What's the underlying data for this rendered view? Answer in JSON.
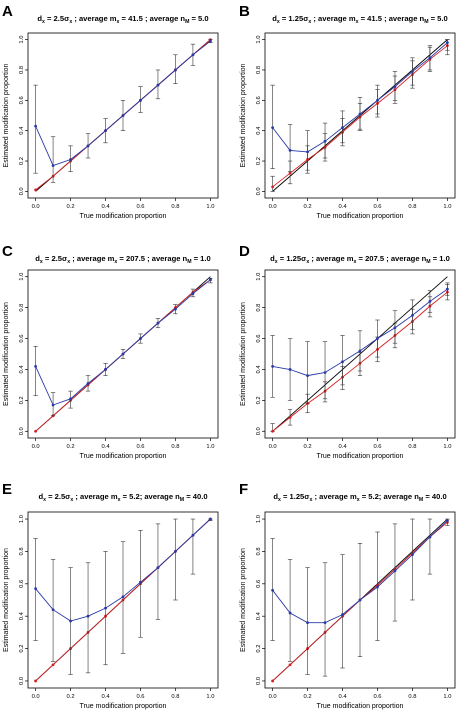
{
  "figure": {
    "colors": {
      "black": "#000000",
      "red": "#d62020",
      "blue": "#2a3aa8"
    }
  },
  "chart_data": [
    {
      "panel": "A",
      "type": "line",
      "title": "dₖ = 2.5σₖ ; average mₖ = 41.5 ; average nₘ = 5.0",
      "title_parts": [
        "d",
        "x",
        " = 2.5σ",
        "x",
        " ; average m",
        "x",
        " = 41.5 ; average n",
        "M",
        " = 5.0"
      ],
      "xlabel": "True modification proportion",
      "ylabel": "Estimated modification proportion",
      "xlim": [
        0,
        1
      ],
      "ylim": [
        0,
        1
      ],
      "xticks": [
        "0.0",
        "0.2",
        "0.4",
        "0.6",
        "0.8",
        "1.0"
      ],
      "yticks": [
        "0.0",
        "0.2",
        "0.4",
        "0.6",
        "0.8",
        "1.0"
      ],
      "x": [
        0,
        0.1,
        0.2,
        0.3,
        0.4,
        0.5,
        0.6,
        0.7,
        0.8,
        0.9,
        1.0
      ],
      "series": [
        {
          "color": "red",
          "values": [
            0.01,
            0.1,
            0.2,
            0.3,
            0.4,
            0.5,
            0.6,
            0.7,
            0.8,
            0.9,
            1.0
          ]
        },
        {
          "color": "blue",
          "values": [
            0.43,
            0.17,
            0.21,
            0.3,
            0.4,
            0.5,
            0.6,
            0.7,
            0.8,
            0.9,
            0.99
          ],
          "err_low": [
            0.12,
            0.06,
            0.13,
            0.22,
            0.32,
            0.4,
            0.52,
            0.61,
            0.71,
            0.83,
            0.98
          ],
          "err_high": [
            0.7,
            0.36,
            0.3,
            0.38,
            0.48,
            0.6,
            0.69,
            0.8,
            0.9,
            0.97,
            1.0
          ]
        }
      ]
    },
    {
      "panel": "B",
      "type": "line",
      "title": "dₖ = 1.25σₖ ; average mₖ = 41.5 ; average nₘ = 5.0",
      "title_parts": [
        "d",
        "x",
        " = 1.25σ",
        "x",
        " ; average m",
        "x",
        " = 41.5 ; average n",
        "M",
        " = 5.0"
      ],
      "xlabel": "True modification proportion",
      "ylabel": "Estimated modification proportion",
      "xlim": [
        0,
        1
      ],
      "ylim": [
        0,
        1
      ],
      "xticks": [
        "0.0",
        "0.2",
        "0.4",
        "0.6",
        "0.8",
        "1.0"
      ],
      "yticks": [
        "0.0",
        "0.2",
        "0.4",
        "0.6",
        "0.8",
        "1.0"
      ],
      "x": [
        0,
        0.1,
        0.2,
        0.3,
        0.4,
        0.5,
        0.6,
        0.7,
        0.8,
        0.9,
        1.0
      ],
      "series": [
        {
          "color": "red",
          "values": [
            0.03,
            0.12,
            0.21,
            0.29,
            0.39,
            0.49,
            0.58,
            0.67,
            0.77,
            0.87,
            0.96
          ],
          "err_low": [
            0.0,
            0.05,
            0.12,
            0.2,
            0.3,
            0.4,
            0.49,
            0.58,
            0.68,
            0.79,
            0.9
          ],
          "err_high": [
            0.1,
            0.2,
            0.3,
            0.38,
            0.48,
            0.58,
            0.67,
            0.76,
            0.86,
            0.95,
            1.0
          ]
        },
        {
          "color": "blue",
          "values": [
            0.42,
            0.27,
            0.26,
            0.33,
            0.42,
            0.51,
            0.6,
            0.69,
            0.79,
            0.88,
            0.98
          ],
          "err_low": [
            0.15,
            0.13,
            0.14,
            0.22,
            0.32,
            0.41,
            0.51,
            0.6,
            0.7,
            0.8,
            0.93
          ],
          "err_high": [
            0.7,
            0.44,
            0.4,
            0.45,
            0.53,
            0.62,
            0.7,
            0.79,
            0.88,
            0.96,
            1.0
          ]
        }
      ]
    },
    {
      "panel": "C",
      "type": "line",
      "title": "dₖ = 2.5σₖ ; average mₖ = 207.5 ; average nₘ = 1.0",
      "title_parts": [
        "d",
        "x",
        " = 2.5σ",
        "x",
        " ; average m",
        "x",
        " = 207.5 ; average n",
        "M",
        " = 1.0"
      ],
      "xlabel": "True modification proportion",
      "ylabel": "Estimated modification proportion",
      "xlim": [
        0,
        1
      ],
      "ylim": [
        0,
        1
      ],
      "xticks": [
        "0.0",
        "0.2",
        "0.4",
        "0.6",
        "0.8",
        "1.0"
      ],
      "yticks": [
        "0.0",
        "0.2",
        "0.4",
        "0.6",
        "0.8",
        "1.0"
      ],
      "x": [
        0,
        0.1,
        0.2,
        0.3,
        0.4,
        0.5,
        0.6,
        0.7,
        0.8,
        0.9,
        1.0
      ],
      "series": [
        {
          "color": "red",
          "values": [
            0.0,
            0.1,
            0.2,
            0.3,
            0.4,
            0.5,
            0.6,
            0.7,
            0.8,
            0.9,
            0.98
          ]
        },
        {
          "color": "blue",
          "values": [
            0.42,
            0.17,
            0.21,
            0.31,
            0.4,
            0.5,
            0.6,
            0.7,
            0.79,
            0.89,
            0.98
          ],
          "err_low": [
            0.23,
            0.1,
            0.15,
            0.26,
            0.36,
            0.47,
            0.57,
            0.67,
            0.76,
            0.87,
            0.96
          ],
          "err_high": [
            0.55,
            0.25,
            0.26,
            0.36,
            0.44,
            0.53,
            0.63,
            0.73,
            0.82,
            0.92,
            0.99
          ]
        }
      ]
    },
    {
      "panel": "D",
      "type": "line",
      "title": "dₖ = 1.25σₖ ; average mₖ = 207.5 ; average nₘ = 1.0",
      "title_parts": [
        "d",
        "x",
        " = 1.25σ",
        "x",
        " ; average m",
        "x",
        " = 207.5 ; average n",
        "M",
        " = 1.0"
      ],
      "xlabel": "True modification proportion",
      "ylabel": "Estimated modification proportion",
      "xlim": [
        0,
        1
      ],
      "ylim": [
        0,
        1
      ],
      "xticks": [
        "0.0",
        "0.2",
        "0.4",
        "0.6",
        "0.8",
        "1.0"
      ],
      "yticks": [
        "0.0",
        "0.2",
        "0.4",
        "0.6",
        "0.8",
        "1.0"
      ],
      "x": [
        0,
        0.1,
        0.2,
        0.3,
        0.4,
        0.5,
        0.6,
        0.7,
        0.8,
        0.9,
        1.0
      ],
      "series": [
        {
          "color": "red",
          "values": [
            0.0,
            0.09,
            0.18,
            0.26,
            0.35,
            0.44,
            0.53,
            0.62,
            0.71,
            0.81,
            0.9
          ],
          "err_low": [
            0.0,
            0.04,
            0.12,
            0.19,
            0.27,
            0.36,
            0.45,
            0.54,
            0.63,
            0.74,
            0.85
          ],
          "err_high": [
            0.05,
            0.14,
            0.24,
            0.32,
            0.42,
            0.51,
            0.61,
            0.7,
            0.79,
            0.87,
            0.95
          ]
        },
        {
          "color": "blue",
          "values": [
            0.42,
            0.4,
            0.36,
            0.38,
            0.45,
            0.52,
            0.6,
            0.67,
            0.75,
            0.84,
            0.92
          ],
          "err_low": [
            0.22,
            0.2,
            0.18,
            0.21,
            0.3,
            0.39,
            0.48,
            0.57,
            0.66,
            0.77,
            0.88
          ],
          "err_high": [
            0.62,
            0.6,
            0.58,
            0.58,
            0.62,
            0.65,
            0.72,
            0.78,
            0.85,
            0.91,
            0.96
          ]
        }
      ]
    },
    {
      "panel": "E",
      "type": "line",
      "title": "dₖ = 2.5σₖ ; average mₖ = 5.2; average nₘ = 40.0",
      "title_parts": [
        "d",
        "x",
        " = 2.5σ",
        "x",
        " ; average m",
        "x",
        " = 5.2; average n",
        "M",
        " = 40.0"
      ],
      "xlabel": "True modification proportion",
      "ylabel": "Estimated modification proportion",
      "xlim": [
        0,
        1
      ],
      "ylim": [
        0,
        1
      ],
      "xticks": [
        "0.0",
        "0.2",
        "0.4",
        "0.6",
        "0.8",
        "1.0"
      ],
      "yticks": [
        "0.0",
        "0.2",
        "0.4",
        "0.6",
        "0.8",
        "1.0"
      ],
      "x": [
        0,
        0.1,
        0.2,
        0.3,
        0.4,
        0.5,
        0.6,
        0.7,
        0.8,
        0.9,
        1.0
      ],
      "series": [
        {
          "color": "red",
          "values": [
            0.0,
            0.1,
            0.2,
            0.3,
            0.4,
            0.5,
            0.6,
            0.7,
            0.8,
            0.9,
            1.0
          ]
        },
        {
          "color": "blue",
          "values": [
            0.57,
            0.44,
            0.37,
            0.4,
            0.45,
            0.52,
            0.61,
            0.7,
            0.8,
            0.9,
            1.0
          ],
          "err_low": [
            0.25,
            0.12,
            0.04,
            0.05,
            0.1,
            0.17,
            0.27,
            0.38,
            0.5,
            0.66,
            0.99
          ],
          "err_high": [
            0.88,
            0.75,
            0.7,
            0.73,
            0.8,
            0.86,
            0.93,
            0.97,
            1.0,
            1.0,
            1.0
          ]
        }
      ]
    },
    {
      "panel": "F",
      "type": "line",
      "title": "dₖ = 1.25σₖ ; average mₖ = 5.2; average nₘ = 40.0",
      "title_parts": [
        "d",
        "x",
        " = 1.25σ",
        "x",
        " ; average m",
        "x",
        " = 5.2; average n",
        "M",
        " = 40.0"
      ],
      "xlabel": "True modification proportion",
      "ylabel": "Estimated modification proportion",
      "xlim": [
        0,
        1
      ],
      "ylim": [
        0,
        1
      ],
      "xticks": [
        "0.0",
        "0.2",
        "0.4",
        "0.6",
        "0.8",
        "1.0"
      ],
      "yticks": [
        "0.0",
        "0.2",
        "0.4",
        "0.6",
        "0.8",
        "1.0"
      ],
      "x": [
        0,
        0.1,
        0.2,
        0.3,
        0.4,
        0.5,
        0.6,
        0.7,
        0.8,
        0.9,
        1.0
      ],
      "series": [
        {
          "color": "red",
          "values": [
            0.0,
            0.1,
            0.2,
            0.3,
            0.4,
            0.5,
            0.59,
            0.69,
            0.79,
            0.89,
            0.98
          ]
        },
        {
          "color": "blue",
          "values": [
            0.56,
            0.42,
            0.36,
            0.36,
            0.41,
            0.5,
            0.58,
            0.68,
            0.78,
            0.89,
            0.99
          ],
          "err_low": [
            0.25,
            0.12,
            0.04,
            0.03,
            0.08,
            0.15,
            0.25,
            0.37,
            0.5,
            0.66,
            0.96
          ],
          "err_high": [
            0.88,
            0.75,
            0.7,
            0.73,
            0.78,
            0.85,
            0.92,
            0.97,
            1.0,
            1.0,
            1.0
          ]
        }
      ]
    }
  ]
}
